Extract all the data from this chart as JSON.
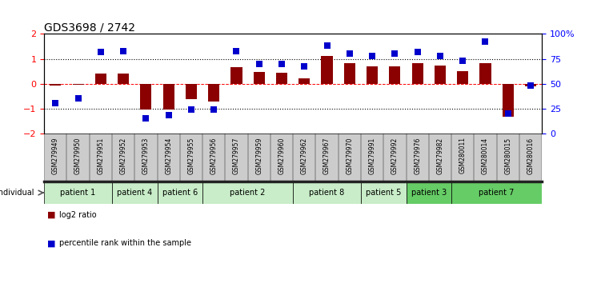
{
  "title": "GDS3698 / 2742",
  "samples": [
    "GSM279949",
    "GSM279950",
    "GSM279951",
    "GSM279952",
    "GSM279953",
    "GSM279954",
    "GSM279955",
    "GSM279956",
    "GSM279957",
    "GSM279959",
    "GSM279960",
    "GSM279962",
    "GSM279967",
    "GSM279970",
    "GSM279991",
    "GSM279992",
    "GSM279976",
    "GSM279982",
    "GSM280011",
    "GSM280014",
    "GSM280015",
    "GSM280016"
  ],
  "log2_ratio": [
    -0.08,
    -0.05,
    0.42,
    0.42,
    -1.05,
    -1.05,
    -0.62,
    -0.72,
    0.65,
    0.48,
    0.45,
    0.22,
    1.1,
    0.82,
    0.68,
    0.68,
    0.82,
    0.74,
    0.5,
    0.82,
    -1.35,
    -0.12
  ],
  "percentile": [
    30,
    35,
    82,
    83,
    15,
    18,
    24,
    24,
    83,
    70,
    70,
    67,
    88,
    80,
    78,
    80,
    82,
    78,
    73,
    92,
    20,
    48
  ],
  "patients": [
    {
      "label": "patient 1",
      "start": 0,
      "end": 3,
      "color": "#c8edc8"
    },
    {
      "label": "patient 4",
      "start": 3,
      "end": 5,
      "color": "#c8edc8"
    },
    {
      "label": "patient 6",
      "start": 5,
      "end": 7,
      "color": "#c8edc8"
    },
    {
      "label": "patient 2",
      "start": 7,
      "end": 11,
      "color": "#c8edc8"
    },
    {
      "label": "patient 8",
      "start": 11,
      "end": 14,
      "color": "#c8edc8"
    },
    {
      "label": "patient 5",
      "start": 14,
      "end": 16,
      "color": "#c8edc8"
    },
    {
      "label": "patient 3",
      "start": 16,
      "end": 18,
      "color": "#66cc66"
    },
    {
      "label": "patient 7",
      "start": 18,
      "end": 22,
      "color": "#66cc66"
    }
  ],
  "bar_color": "#8B0000",
  "dot_color": "#0000CC",
  "label_bg_color": "#cccccc",
  "sep_color": "#222222",
  "ylim_left": [
    -2,
    2
  ],
  "ylim_right": [
    0,
    100
  ],
  "yticks_left": [
    -2,
    -1,
    0,
    1,
    2
  ],
  "yticks_right": [
    0,
    25,
    50,
    75,
    100
  ],
  "ytick_labels_right": [
    "0",
    "25",
    "50",
    "75",
    "100%"
  ],
  "left_tick_color": "red",
  "right_tick_color": "blue",
  "legend_items": [
    {
      "color": "#8B0000",
      "label": "log2 ratio"
    },
    {
      "color": "#0000CC",
      "label": "percentile rank within the sample"
    }
  ]
}
